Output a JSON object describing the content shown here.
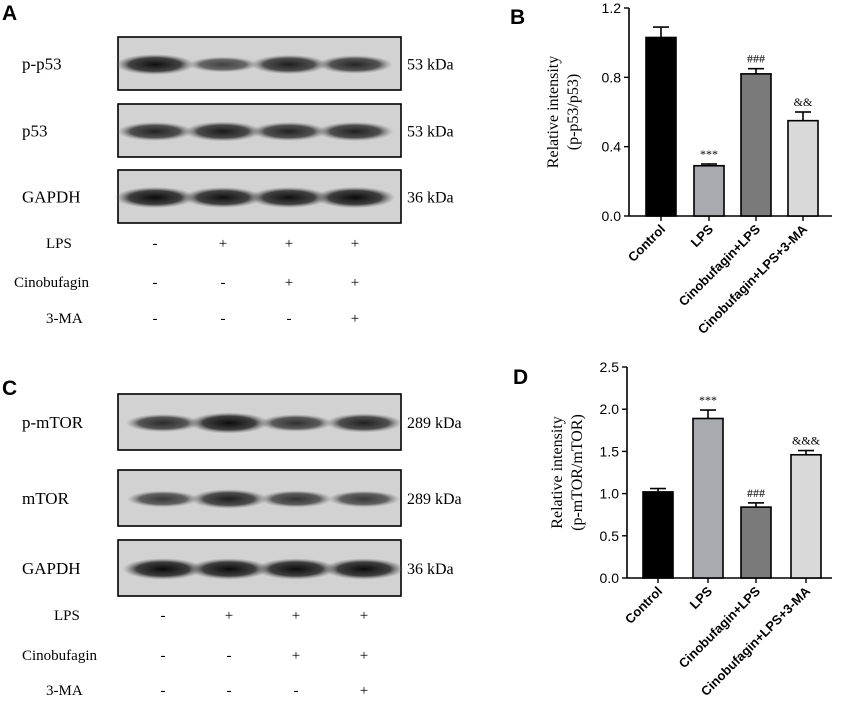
{
  "panels": {
    "A": "A",
    "B": "B",
    "C": "C",
    "D": "D"
  },
  "blot_A": {
    "rows": [
      {
        "label": "p-p53",
        "kda": "53 kDa",
        "intensity": [
          0.92,
          0.55,
          0.82,
          0.75
        ]
      },
      {
        "label": "p53",
        "kda": "53 kDa",
        "intensity": [
          0.78,
          0.85,
          0.78,
          0.8
        ]
      },
      {
        "label": "GAPDH",
        "kda": "36 kDa",
        "intensity": [
          0.95,
          0.92,
          0.93,
          0.96
        ]
      }
    ],
    "treatments": [
      {
        "label": "LPS",
        "signs": [
          "-",
          "+",
          "+",
          "+"
        ]
      },
      {
        "label": "Cinobufagin",
        "signs": [
          "-",
          "-",
          "+",
          "+"
        ]
      },
      {
        "label": "3-MA",
        "signs": [
          "-",
          "-",
          "-",
          "+"
        ]
      }
    ]
  },
  "blot_C": {
    "rows": [
      {
        "label": "p-mTOR",
        "kda": "289 kDa",
        "intensity": [
          0.72,
          0.95,
          0.68,
          0.8
        ]
      },
      {
        "label": "mTOR",
        "kda": "289 kDa",
        "intensity": [
          0.62,
          0.82,
          0.66,
          0.62
        ]
      },
      {
        "label": "GAPDH",
        "kda": "36 kDa",
        "intensity": [
          0.97,
          0.96,
          0.96,
          0.96
        ]
      }
    ],
    "treatments": [
      {
        "label": "LPS",
        "signs": [
          "-",
          "+",
          "+",
          "+"
        ]
      },
      {
        "label": "Cinobufagin",
        "signs": [
          "-",
          "-",
          "+",
          "+"
        ]
      },
      {
        "label": "3-MA",
        "signs": [
          "-",
          "-",
          "-",
          "+"
        ]
      }
    ]
  },
  "chart_data": [
    {
      "type": "bar",
      "panel": "B",
      "categories": [
        "Control",
        "LPS",
        "Cinobufagin+LPS",
        "Cinobufagin+LPS+3-MA"
      ],
      "values": [
        1.03,
        0.29,
        0.82,
        0.55
      ],
      "errors": [
        0.06,
        0.01,
        0.03,
        0.05
      ],
      "annotations": [
        "",
        "***",
        "###",
        "&&"
      ],
      "bar_colors": [
        "#000000",
        "#a9a9b0",
        "#7a7a7a",
        "#d9d9d9"
      ],
      "ylabel": [
        "Relative intensity",
        "(p-p53/p53)"
      ],
      "ylim": [
        0,
        1.2
      ],
      "yticks": [
        "0.0",
        "0.4",
        "0.8",
        "1.2"
      ],
      "ytick_values": [
        0,
        0.4,
        0.8,
        1.2
      ]
    },
    {
      "type": "bar",
      "panel": "D",
      "categories": [
        "Control",
        "LPS",
        "Cinobufagin+LPS",
        "Cinobufagin+LPS+3-MA"
      ],
      "values": [
        1.02,
        1.89,
        0.84,
        1.46
      ],
      "errors": [
        0.04,
        0.1,
        0.05,
        0.05
      ],
      "annotations": [
        "",
        "***",
        "###",
        "&&&"
      ],
      "bar_colors": [
        "#000000",
        "#a9a9b0",
        "#7a7a7a",
        "#d9d9d9"
      ],
      "ylabel": [
        "Relative intensity",
        "(p-mTOR/mTOR)"
      ],
      "ylim": [
        0,
        2.5
      ],
      "yticks": [
        "0.0",
        "0.5",
        "1.0",
        "1.5",
        "2.0",
        "2.5"
      ],
      "ytick_values": [
        0,
        0.5,
        1.0,
        1.5,
        2.0,
        2.5
      ]
    }
  ]
}
